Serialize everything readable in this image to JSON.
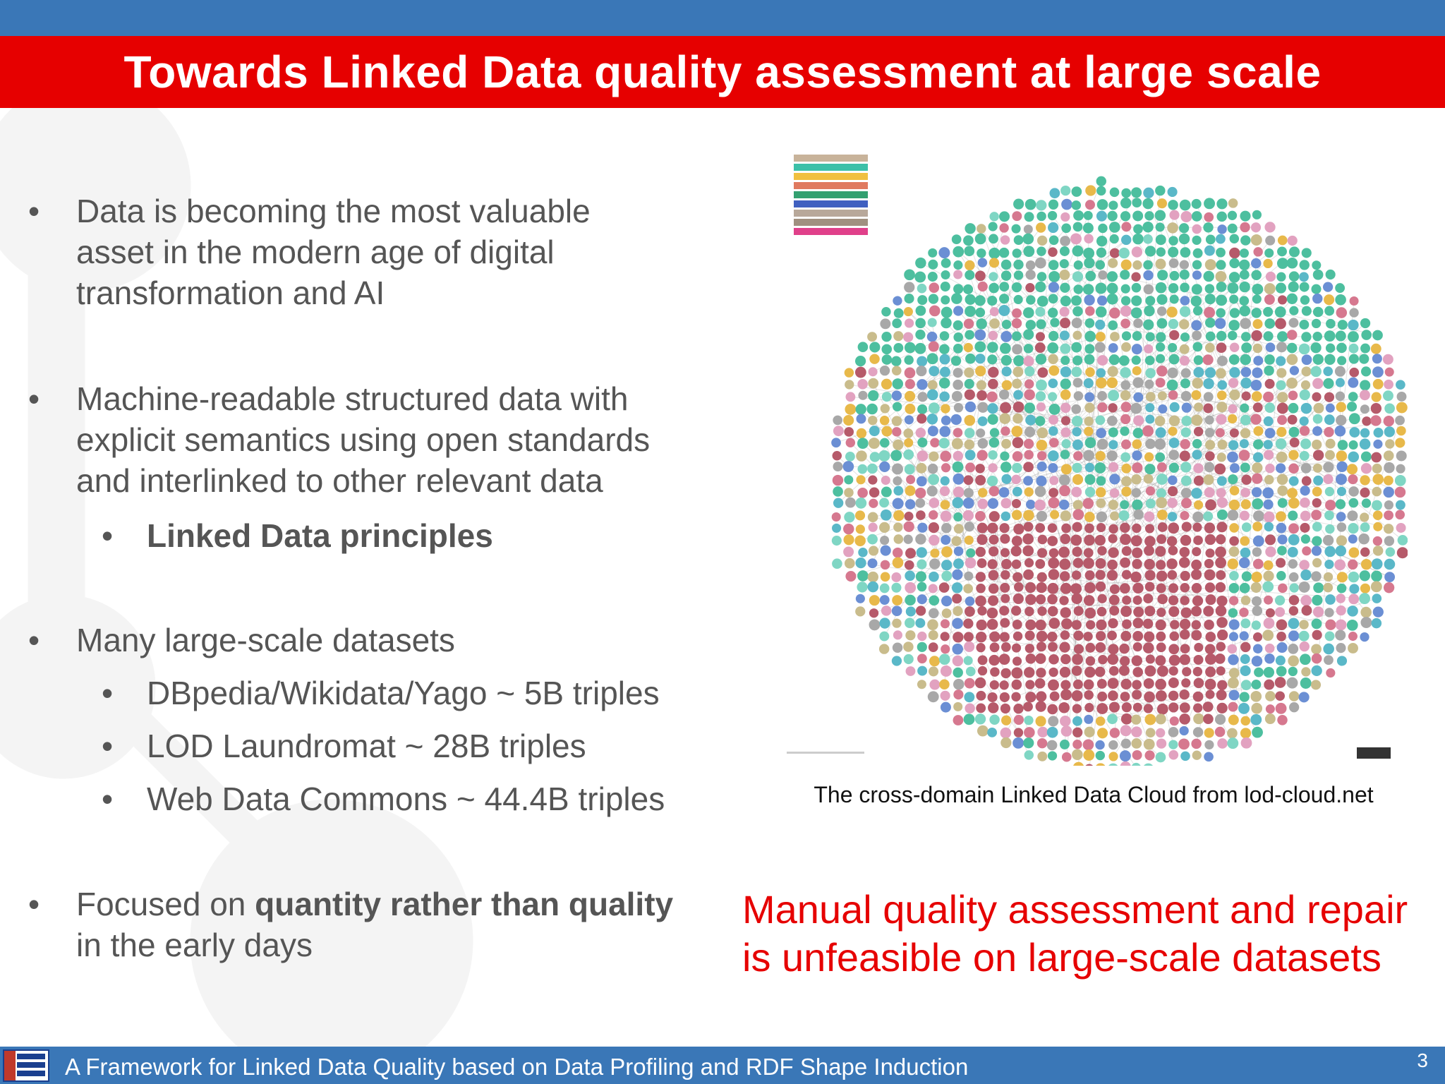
{
  "slide": {
    "title": "Towards Linked Data quality assessment at large scale",
    "bullets": [
      {
        "lines": [
          "Data is becoming the most valuable",
          "asset in the modern age of digital",
          "transformation and AI"
        ]
      },
      {
        "lines": [
          "Machine-readable structured data with",
          "explicit semantics using open standards",
          "and interlinked to other relevant data"
        ],
        "sub": [
          "Linked Data principles"
        ]
      },
      {
        "lines": [
          "Many large-scale datasets"
        ],
        "sub": [
          "DBpedia/Wikidata/Yago ~ 5B triples",
          "LOD Laundromat ~ 28B triples",
          "Web Data Commons ~ 44.4B triples"
        ]
      },
      {
        "line1_pre": "Focused on ",
        "line1_bold": "quantity rather than quality",
        "line2": "in the early days"
      }
    ],
    "bullet_char": "•",
    "image_caption": "The cross-domain Linked Data Cloud from lod-cloud.net",
    "callout_lines": [
      "Manual quality assessment and repair",
      "is unfeasible on large-scale datasets"
    ],
    "footer_text": "A Framework for Linked Data Quality based on Data Profiling and RDF Shape Induction",
    "page_number": "3",
    "colors": {
      "title_bar": "#e60000",
      "band": "#3a77b7",
      "callout": "#e60000",
      "body_text": "#555555"
    },
    "legend_colors": [
      "#c8b39a",
      "#3cc0a8",
      "#f0c040",
      "#e07a5f",
      "#33a070",
      "#4060c0",
      "#b8a89a",
      "#a09080",
      "#e0408a"
    ],
    "cloud_colors": [
      "#4dbf9f",
      "#c9bc8c",
      "#e8b94a",
      "#d6788f",
      "#b65a6a",
      "#6b8fd4",
      "#7fd6c4",
      "#a8a8a8",
      "#5ab8c8",
      "#e2a2c0"
    ]
  }
}
